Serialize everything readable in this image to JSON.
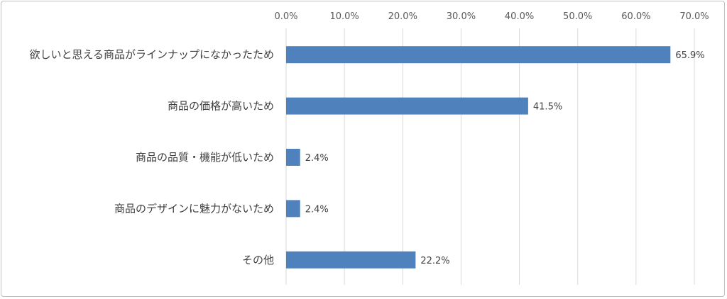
{
  "chart_data": {
    "type": "bar",
    "orientation": "horizontal",
    "categories": [
      "欲しいと思える商品がラインナップになかったため",
      "商品の価格が高いため",
      "商品の品質・機能が低いため",
      "商品のデザインに魅力がないため",
      "その他"
    ],
    "values": [
      65.9,
      41.5,
      2.4,
      2.4,
      22.2
    ],
    "data_labels": [
      "65.9%",
      "41.5%",
      "2.4%",
      "2.4%",
      "22.2%"
    ],
    "xlim": [
      0,
      70
    ],
    "x_ticks": [
      "0.0%",
      "10.0%",
      "20.0%",
      "30.0%",
      "40.0%",
      "50.0%",
      "60.0%",
      "70.0%"
    ],
    "x_axis_position": "top",
    "grid": true,
    "title": "",
    "xlabel": "",
    "ylabel": "",
    "bar_color": "#4f81bd",
    "grid_color": "#d9d9d9"
  }
}
